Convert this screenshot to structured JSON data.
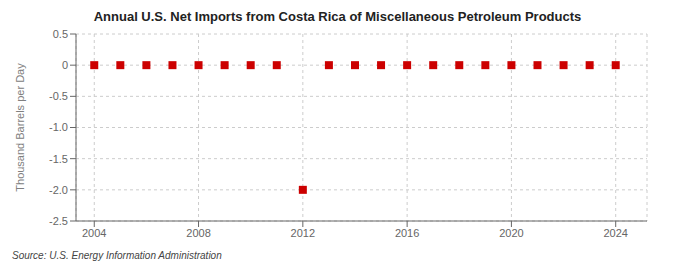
{
  "chart_data": {
    "type": "scatter",
    "title": "Annual U.S. Net Imports from Costa Rica of Miscellaneous Petroleum Products",
    "ylabel": "Thousand Barrels per Day",
    "annotation": "Source: U.S. Energy Information Administration",
    "x": [
      2004,
      2005,
      2006,
      2007,
      2008,
      2009,
      2010,
      2011,
      2012,
      2013,
      2014,
      2015,
      2016,
      2017,
      2018,
      2019,
      2020,
      2021,
      2022,
      2023,
      2024
    ],
    "values": [
      0,
      0,
      0,
      0,
      0,
      0,
      0,
      0,
      -2.0,
      0,
      0,
      0,
      0,
      0,
      0,
      0,
      0,
      0,
      0,
      0,
      0
    ],
    "color": "#cc0000",
    "marker": "square",
    "grid": true,
    "xlim": [
      2003.3,
      2025.2
    ],
    "xticks": [
      2004,
      2008,
      2012,
      2016,
      2020,
      2024
    ],
    "ylim": [
      -2.5,
      0.5
    ],
    "yticks": [
      0.5,
      0,
      -0.5,
      {
        "value": -1.0,
        "label": "-1.0"
      },
      -1.5,
      {
        "value": -2.0,
        "label": "-2.0"
      },
      -2.5
    ]
  }
}
